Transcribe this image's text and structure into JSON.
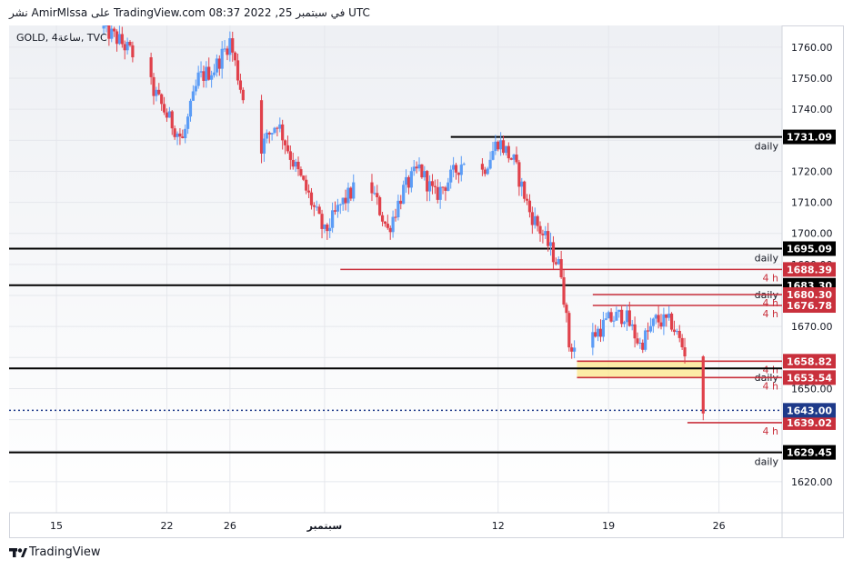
{
  "header": {
    "publish_line": "نشر AmirMlssa على TradingView.com 08:37 2022 ,25 في سبتمبر UTC"
  },
  "symbol_label": "GOLD, 4ساعة, TVC",
  "footer": {
    "logo_text": "TradingView"
  },
  "colors": {
    "up": "#5b9cf6",
    "down": "#e0414b",
    "daily_line": "#000000",
    "h4_line": "#c9303c",
    "current_price": "#1e3a8a",
    "zone": "#fce78a",
    "grid": "#e5e7ec"
  },
  "chart_data": {
    "type": "candlestick",
    "symbol": "GOLD",
    "timeframe": "4ساعة",
    "source": "TVC",
    "ylim": [
      1610,
      1767
    ],
    "y_ticks": [
      1620.0,
      1630.0,
      1640.0,
      1650.0,
      1660.0,
      1670.0,
      1680.0,
      1690.0,
      1700.0,
      1710.0,
      1720.0,
      1730.0,
      1740.0,
      1750.0,
      1760.0
    ],
    "x_ticks": [
      {
        "label": "15",
        "date": "2022-08-15"
      },
      {
        "label": "22",
        "date": "2022-08-22"
      },
      {
        "label": "26",
        "date": "2022-08-26"
      },
      {
        "label": "سبتمبر",
        "date": "2022-09-01"
      },
      {
        "label": "12",
        "date": "2022-09-12"
      },
      {
        "label": "19",
        "date": "2022-09-19"
      },
      {
        "label": "26",
        "date": "2022-09-26"
      }
    ],
    "x_range": [
      "2022-08-12",
      "2022-09-30"
    ],
    "price_path": [
      [
        "2022-08-18",
        1766
      ],
      [
        "2022-08-19",
        1762
      ],
      [
        "2022-08-20",
        1757
      ],
      [
        "2022-08-22",
        1738
      ],
      [
        "2022-08-23",
        1730
      ],
      [
        "2022-08-24",
        1750
      ],
      [
        "2022-08-25",
        1753
      ],
      [
        "2022-08-26",
        1762
      ],
      [
        "2022-08-27",
        1740
      ],
      [
        "2022-08-28",
        1728
      ],
      [
        "2022-08-29",
        1736
      ],
      [
        "2022-08-30",
        1723
      ],
      [
        "2022-08-31",
        1712
      ],
      [
        "2022-09-01",
        1700
      ],
      [
        "2022-09-02",
        1709
      ],
      [
        "2022-09-03",
        1715
      ],
      [
        "2022-09-04",
        1714
      ],
      [
        "2022-09-05",
        1701
      ],
      [
        "2022-09-06",
        1714
      ],
      [
        "2022-09-07",
        1721
      ],
      [
        "2022-09-08",
        1712
      ],
      [
        "2022-09-09",
        1718
      ],
      [
        "2022-09-10",
        1725
      ],
      [
        "2022-09-11",
        1720
      ],
      [
        "2022-09-12",
        1730
      ],
      [
        "2022-09-13",
        1723
      ],
      [
        "2022-09-14",
        1707
      ],
      [
        "2022-09-15",
        1698
      ],
      [
        "2022-09-16",
        1688
      ],
      [
        "2022-09-16T12:00",
        1664
      ],
      [
        "2022-09-17",
        1663
      ],
      [
        "2022-09-18",
        1667
      ],
      [
        "2022-09-19",
        1672
      ],
      [
        "2022-09-20",
        1674
      ],
      [
        "2022-09-21",
        1664
      ],
      [
        "2022-09-22",
        1672
      ],
      [
        "2022-09-23",
        1671
      ],
      [
        "2022-09-24",
        1660
      ],
      [
        "2022-09-24T16:00",
        1648
      ],
      [
        "2022-09-25",
        1643
      ]
    ],
    "levels": [
      {
        "price": 1731.09,
        "label": "1731.09",
        "tf": "daily",
        "kind": "daily",
        "from": "2022-09-09"
      },
      {
        "price": 1695.09,
        "label": "1695.09",
        "tf": "daily",
        "kind": "daily",
        "from": "2022-08-12"
      },
      {
        "price": 1688.39,
        "label": "1688.39",
        "tf": "4 h",
        "kind": "h4",
        "from": "2022-09-02"
      },
      {
        "price": 1683.3,
        "label": "1683.30",
        "tf": "daily",
        "kind": "daily",
        "from": "2022-08-12"
      },
      {
        "price": 1680.3,
        "label": "1680.30",
        "tf": "4 h",
        "kind": "h4",
        "from": "2022-09-18"
      },
      {
        "price": 1676.78,
        "label": "1676.78",
        "tf": "4 h",
        "kind": "h4",
        "from": "2022-09-18"
      },
      {
        "price": 1658.82,
        "label": "1658.82",
        "tf": "4 h",
        "kind": "h4",
        "from": "2022-09-17"
      },
      {
        "price": 1656.5,
        "label": "",
        "tf": "daily",
        "kind": "daily",
        "from": "2022-08-12"
      },
      {
        "price": 1653.54,
        "label": "1653.54",
        "tf": "4 h",
        "kind": "h4",
        "from": "2022-09-17"
      },
      {
        "price": 1639.02,
        "label": "1639.02",
        "tf": "4 h",
        "kind": "h4",
        "from": "2022-09-24"
      },
      {
        "price": 1629.45,
        "label": "1629.45",
        "tf": "daily",
        "kind": "daily",
        "from": "2022-08-12"
      }
    ],
    "zone": {
      "from": "2022-09-17",
      "to": "2022-09-25",
      "low": 1653.54,
      "high": 1658.82
    },
    "current_price": {
      "price": 1643.0,
      "label": "1643.00"
    }
  }
}
